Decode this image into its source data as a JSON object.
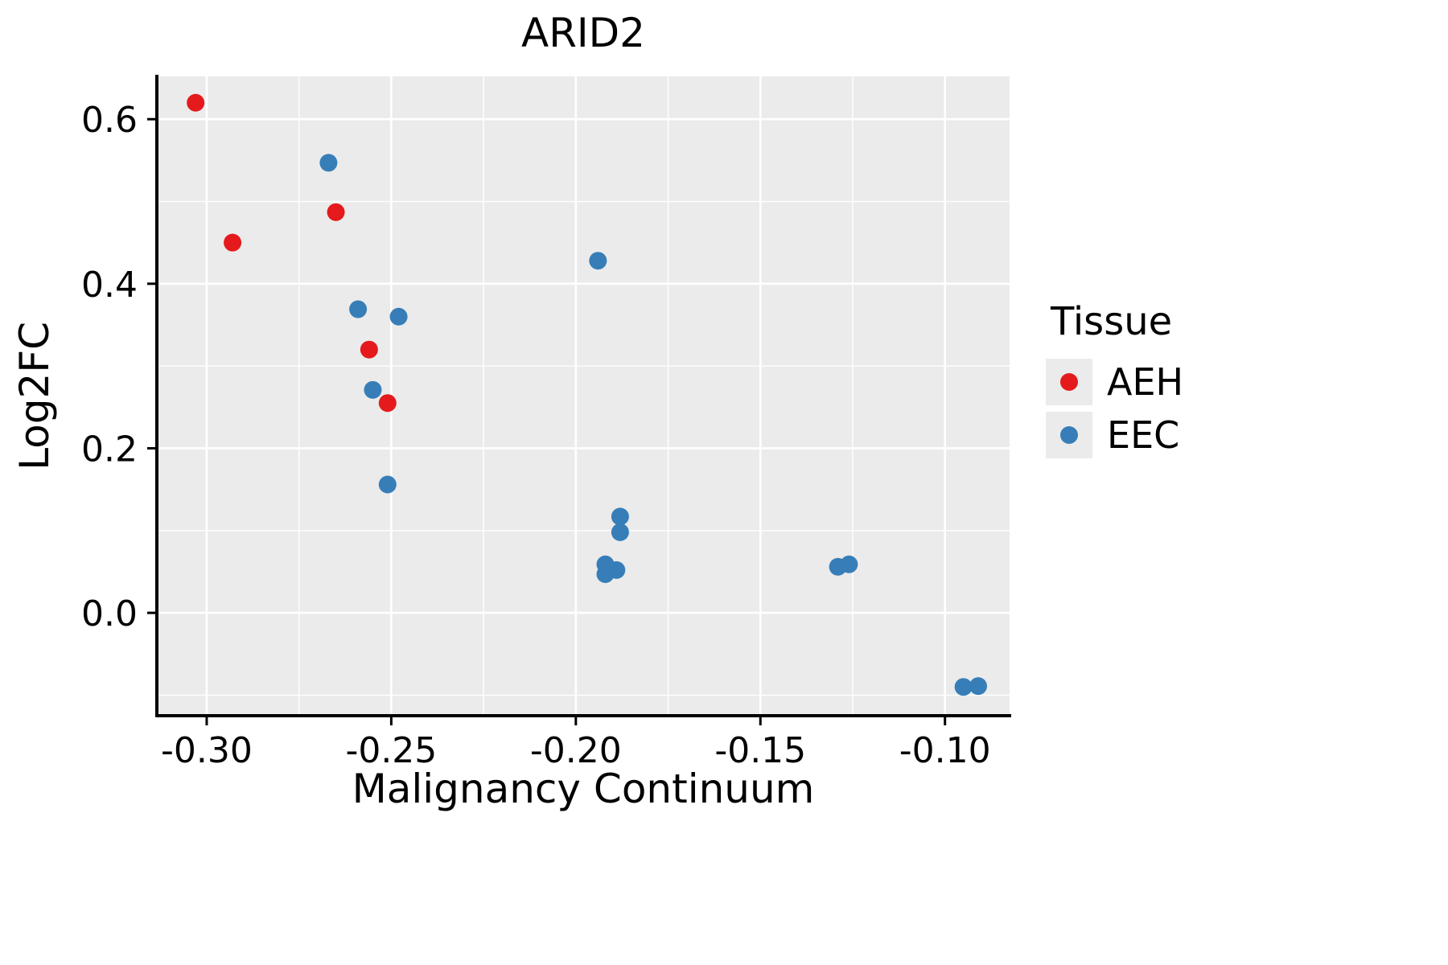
{
  "chart_data": {
    "type": "scatter",
    "title": "ARID2",
    "xlabel": "Malignancy Continuum",
    "ylabel": "Log2FC",
    "xlim": [
      -0.3135,
      -0.0825
    ],
    "ylim": [
      -0.125,
      0.652
    ],
    "xticks": {
      "values": [
        -0.3,
        -0.25,
        -0.2,
        -0.15,
        -0.1
      ],
      "labels": [
        "-0.30",
        "-0.25",
        "-0.20",
        "-0.15",
        "-0.10"
      ]
    },
    "yticks": {
      "values": [
        0.0,
        0.2,
        0.4,
        0.6
      ],
      "labels": [
        "0.0",
        "0.2",
        "0.4",
        "0.6"
      ]
    },
    "x_minor": [
      -0.275,
      -0.225,
      -0.175,
      -0.125
    ],
    "y_minor": [
      -0.1,
      0.1,
      0.3,
      0.5
    ],
    "panel_bg": "#EBEBEB",
    "grid_color": "#FFFFFF",
    "grid": true,
    "legend": {
      "title": "Tissue",
      "position": "right"
    },
    "series": [
      {
        "name": "AEH",
        "color": "#E41A1C",
        "points": [
          [
            -0.303,
            0.62
          ],
          [
            -0.293,
            0.45
          ],
          [
            -0.265,
            0.487
          ],
          [
            -0.256,
            0.32
          ],
          [
            -0.251,
            0.255
          ]
        ]
      },
      {
        "name": "EEC",
        "color": "#377EB8",
        "points": [
          [
            -0.267,
            0.547
          ],
          [
            -0.259,
            0.369
          ],
          [
            -0.248,
            0.36
          ],
          [
            -0.255,
            0.271
          ],
          [
            -0.251,
            0.156
          ],
          [
            -0.194,
            0.428
          ],
          [
            -0.188,
            0.117
          ],
          [
            -0.188,
            0.098
          ],
          [
            -0.192,
            0.059
          ],
          [
            -0.192,
            0.047
          ],
          [
            -0.189,
            0.052
          ],
          [
            -0.129,
            0.056
          ],
          [
            -0.126,
            0.059
          ],
          [
            -0.095,
            -0.09
          ],
          [
            -0.091,
            -0.089
          ]
        ]
      }
    ]
  }
}
